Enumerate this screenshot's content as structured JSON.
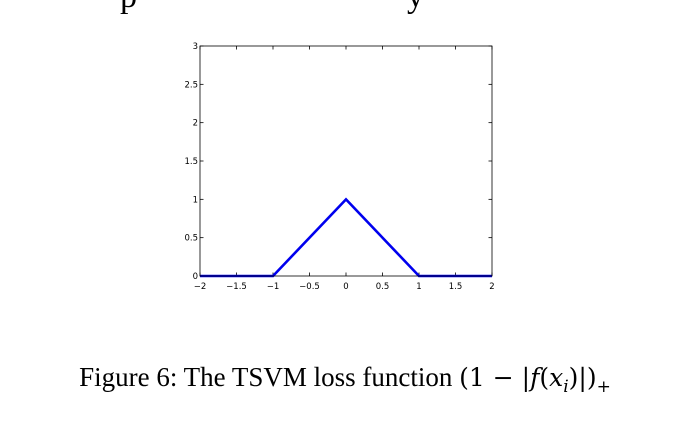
{
  "top_fragment": {
    "left_text": "p",
    "right_text": "y"
  },
  "figure": {
    "caption_label": "Figure 6:",
    "caption_text": "The TSVM loss function",
    "caption_formula": {
      "open": "(1 − |",
      "func": "f",
      "paren_open": "(",
      "var": "x",
      "sub": "i",
      "paren_close": ")|)",
      "plus": "+"
    }
  },
  "chart_data": {
    "type": "line",
    "title": "",
    "xlabel": "",
    "ylabel": "",
    "xlim": [
      -2,
      2
    ],
    "ylim": [
      0,
      3
    ],
    "grid": false,
    "x_ticks": [
      -2,
      -1.5,
      -1,
      -0.5,
      0,
      0.5,
      1,
      1.5,
      2
    ],
    "x_tick_labels": [
      "−2",
      "−1.5",
      "−1",
      "−0.5",
      "0",
      "0.5",
      "1",
      "1.5",
      "2"
    ],
    "y_ticks": [
      0,
      0.5,
      1,
      1.5,
      2,
      2.5,
      3
    ],
    "y_tick_labels": [
      "0",
      "0.5",
      "1",
      "1.5",
      "2",
      "2.5",
      "3"
    ],
    "series": [
      {
        "color": "#0000ee",
        "x": [
          -2,
          -1,
          0,
          1,
          2
        ],
        "y": [
          0,
          0,
          1,
          0,
          0
        ]
      }
    ]
  }
}
